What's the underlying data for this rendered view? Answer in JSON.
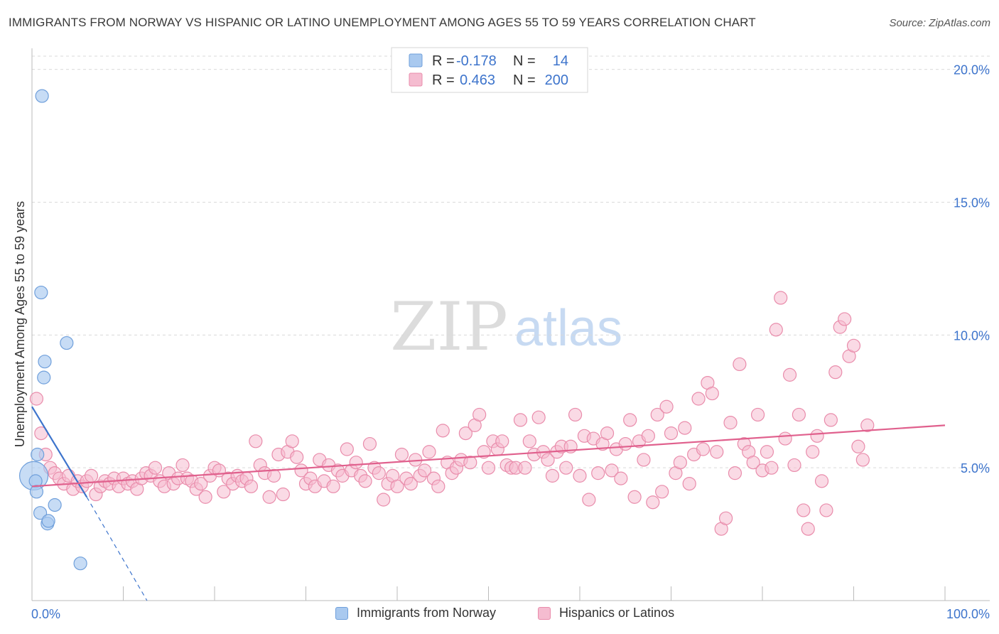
{
  "header": {
    "title": "IMMIGRANTS FROM NORWAY VS HISPANIC OR LATINO UNEMPLOYMENT AMONG AGES 55 TO 59 YEARS CORRELATION CHART",
    "source": "Source: ZipAtlas.com"
  },
  "watermark": {
    "zip": "ZIP",
    "atlas": "atlas"
  },
  "colors": {
    "blue_fill": "#a9c9ef",
    "blue_stroke": "#6f9fdb",
    "blue_line": "#3d74cc",
    "pink_fill": "#f5bcd0",
    "pink_stroke": "#e98cab",
    "pink_line": "#e0608d",
    "value_text": "#3d74cc",
    "grid": "#d9d9d9"
  },
  "legend_top": {
    "rows": [
      {
        "r_label": "R =",
        "r_value": "-0.178",
        "n_label": "N =",
        "n_value": "14",
        "series": "blue"
      },
      {
        "r_label": "R =",
        "r_value": "0.463",
        "n_label": "N =",
        "n_value": "200",
        "series": "pink"
      }
    ]
  },
  "legend_bottom": {
    "items": [
      {
        "label": "Immigrants from Norway",
        "series": "blue"
      },
      {
        "label": "Hispanics or Latinos",
        "series": "pink"
      }
    ]
  },
  "chart_data": {
    "type": "scatter",
    "title": "IMMIGRANTS FROM NORWAY VS HISPANIC OR LATINO UNEMPLOYMENT AMONG AGES 55 TO 59 YEARS CORRELATION CHART",
    "xlabel": "",
    "ylabel": "Unemployment Among Ages 55 to 59 years",
    "xlim": [
      0,
      100
    ],
    "ylim": [
      0,
      20.5
    ],
    "x_tick_labels": [
      "0.0%",
      "100.0%"
    ],
    "y_ticks": [
      5,
      10,
      15,
      20
    ],
    "y_tick_labels": [
      "5.0%",
      "10.0%",
      "15.0%",
      "20.0%"
    ],
    "grid": true,
    "series": [
      {
        "name": "Immigrants from Norway",
        "color": "blue",
        "r": -0.178,
        "n": 14,
        "trend": {
          "x0": 0,
          "y0": 7.3,
          "x1": 6.0,
          "y1": 3.9,
          "dash_to_x": 12.6,
          "dash_to_y": 0
        },
        "points": [
          [
            0.2,
            4.7,
            "large"
          ],
          [
            0.4,
            4.5
          ],
          [
            0.5,
            4.1
          ],
          [
            0.6,
            5.5
          ],
          [
            0.9,
            3.3
          ],
          [
            1.0,
            11.6
          ],
          [
            1.1,
            19.0
          ],
          [
            1.3,
            8.4
          ],
          [
            1.4,
            9.0
          ],
          [
            1.7,
            2.9
          ],
          [
            1.8,
            3.0
          ],
          [
            2.5,
            3.6
          ],
          [
            3.8,
            9.7
          ],
          [
            5.3,
            1.4
          ]
        ]
      },
      {
        "name": "Hispanics or Latinos",
        "color": "pink",
        "r": 0.463,
        "n": 200,
        "trend": {
          "x0": 0,
          "y0": 4.3,
          "x1": 100,
          "y1": 6.6
        },
        "points": [
          [
            0.5,
            7.6
          ],
          [
            1.0,
            6.3
          ],
          [
            1.5,
            5.5
          ],
          [
            2.0,
            5.0
          ],
          [
            2.5,
            4.8
          ],
          [
            3.0,
            4.6
          ],
          [
            3.5,
            4.4
          ],
          [
            4.0,
            4.7
          ],
          [
            4.5,
            4.2
          ],
          [
            5.0,
            4.5
          ],
          [
            5.5,
            4.3
          ],
          [
            6.0,
            4.5
          ],
          [
            6.5,
            4.7
          ],
          [
            7.0,
            4.0
          ],
          [
            7.5,
            4.3
          ],
          [
            8.0,
            4.5
          ],
          [
            8.5,
            4.4
          ],
          [
            9.0,
            4.6
          ],
          [
            9.5,
            4.3
          ],
          [
            10.0,
            4.6
          ],
          [
            10.5,
            4.4
          ],
          [
            11.0,
            4.5
          ],
          [
            11.5,
            4.2
          ],
          [
            12.0,
            4.6
          ],
          [
            12.5,
            4.8
          ],
          [
            13.0,
            4.7
          ],
          [
            13.5,
            5.0
          ],
          [
            14.0,
            4.5
          ],
          [
            14.5,
            4.3
          ],
          [
            15.0,
            4.8
          ],
          [
            15.5,
            4.4
          ],
          [
            16.0,
            4.6
          ],
          [
            16.5,
            5.1
          ],
          [
            17.0,
            4.6
          ],
          [
            17.5,
            4.5
          ],
          [
            18.0,
            4.2
          ],
          [
            18.5,
            4.4
          ],
          [
            19.0,
            3.9
          ],
          [
            19.5,
            4.7
          ],
          [
            20.0,
            5.0
          ],
          [
            20.5,
            4.9
          ],
          [
            21.0,
            4.1
          ],
          [
            21.5,
            4.6
          ],
          [
            22.0,
            4.4
          ],
          [
            22.5,
            4.7
          ],
          [
            23.0,
            4.5
          ],
          [
            23.5,
            4.6
          ],
          [
            24.0,
            4.3
          ],
          [
            24.5,
            6.0
          ],
          [
            25.0,
            5.1
          ],
          [
            25.5,
            4.8
          ],
          [
            26.0,
            3.9
          ],
          [
            26.5,
            4.7
          ],
          [
            27.0,
            5.5
          ],
          [
            27.5,
            4.0
          ],
          [
            28.0,
            5.6
          ],
          [
            28.5,
            6.0
          ],
          [
            29.0,
            5.4
          ],
          [
            29.5,
            4.9
          ],
          [
            30.0,
            4.4
          ],
          [
            30.5,
            4.6
          ],
          [
            31.0,
            4.3
          ],
          [
            31.5,
            5.3
          ],
          [
            32.0,
            4.5
          ],
          [
            32.5,
            5.1
          ],
          [
            33.0,
            4.3
          ],
          [
            33.5,
            4.9
          ],
          [
            34.0,
            4.7
          ],
          [
            34.5,
            5.7
          ],
          [
            35.0,
            4.9
          ],
          [
            35.5,
            5.2
          ],
          [
            36.0,
            4.7
          ],
          [
            36.5,
            4.5
          ],
          [
            37.0,
            5.9
          ],
          [
            37.5,
            5.0
          ],
          [
            38.0,
            4.8
          ],
          [
            38.5,
            3.8
          ],
          [
            39.0,
            4.4
          ],
          [
            39.5,
            4.7
          ],
          [
            40.0,
            4.3
          ],
          [
            40.5,
            5.5
          ],
          [
            41.0,
            4.6
          ],
          [
            41.5,
            4.4
          ],
          [
            42.0,
            5.3
          ],
          [
            42.5,
            4.7
          ],
          [
            43.0,
            4.9
          ],
          [
            43.5,
            5.6
          ],
          [
            44.0,
            4.6
          ],
          [
            44.5,
            4.3
          ],
          [
            45.0,
            6.4
          ],
          [
            45.5,
            5.2
          ],
          [
            46.0,
            4.8
          ],
          [
            46.5,
            5.0
          ],
          [
            47.0,
            5.3
          ],
          [
            47.5,
            6.3
          ],
          [
            48.0,
            5.2
          ],
          [
            48.5,
            6.6
          ],
          [
            49.0,
            7.0
          ],
          [
            49.5,
            5.6
          ],
          [
            50.0,
            5.0
          ],
          [
            50.5,
            6.0
          ],
          [
            51.0,
            5.7
          ],
          [
            51.5,
            6.0
          ],
          [
            52.0,
            5.1
          ],
          [
            52.5,
            5.0
          ],
          [
            53.0,
            5.0
          ],
          [
            53.5,
            6.8
          ],
          [
            54.0,
            5.0
          ],
          [
            54.5,
            6.0
          ],
          [
            55.0,
            5.5
          ],
          [
            55.5,
            6.9
          ],
          [
            56.0,
            5.6
          ],
          [
            56.5,
            5.3
          ],
          [
            57.0,
            4.7
          ],
          [
            57.5,
            5.6
          ],
          [
            58.0,
            5.8
          ],
          [
            58.5,
            5.0
          ],
          [
            59.0,
            5.8
          ],
          [
            59.5,
            7.0
          ],
          [
            60.0,
            4.7
          ],
          [
            60.5,
            6.2
          ],
          [
            61.0,
            3.8
          ],
          [
            61.5,
            6.1
          ],
          [
            62.0,
            4.8
          ],
          [
            62.5,
            5.9
          ],
          [
            63.0,
            6.3
          ],
          [
            63.5,
            4.9
          ],
          [
            64.0,
            5.7
          ],
          [
            64.5,
            4.6
          ],
          [
            65.0,
            5.9
          ],
          [
            65.5,
            6.8
          ],
          [
            66.0,
            3.9
          ],
          [
            66.5,
            6.0
          ],
          [
            67.0,
            5.3
          ],
          [
            67.5,
            6.2
          ],
          [
            68.0,
            3.7
          ],
          [
            68.5,
            7.0
          ],
          [
            69.0,
            4.1
          ],
          [
            69.5,
            7.3
          ],
          [
            70.0,
            6.3
          ],
          [
            70.5,
            4.8
          ],
          [
            71.0,
            5.2
          ],
          [
            71.5,
            6.5
          ],
          [
            72.0,
            4.4
          ],
          [
            72.5,
            5.5
          ],
          [
            73.0,
            7.6
          ],
          [
            73.5,
            5.7
          ],
          [
            74.0,
            8.2
          ],
          [
            74.5,
            7.8
          ],
          [
            75.0,
            5.6
          ],
          [
            75.5,
            2.7
          ],
          [
            76.0,
            3.1
          ],
          [
            76.5,
            6.7
          ],
          [
            77.0,
            4.8
          ],
          [
            77.5,
            8.9
          ],
          [
            78.0,
            5.9
          ],
          [
            78.5,
            5.6
          ],
          [
            79.0,
            5.2
          ],
          [
            79.5,
            7.0
          ],
          [
            80.0,
            4.9
          ],
          [
            80.5,
            5.6
          ],
          [
            81.0,
            5.0
          ],
          [
            81.5,
            10.2
          ],
          [
            82.0,
            11.4
          ],
          [
            82.5,
            6.1
          ],
          [
            83.0,
            8.5
          ],
          [
            83.5,
            5.1
          ],
          [
            84.0,
            7.0
          ],
          [
            84.5,
            3.4
          ],
          [
            85.0,
            2.7
          ],
          [
            85.5,
            5.6
          ],
          [
            86.0,
            6.2
          ],
          [
            86.5,
            4.5
          ],
          [
            87.0,
            3.4
          ],
          [
            87.5,
            6.8
          ],
          [
            88.0,
            8.6
          ],
          [
            88.5,
            10.3
          ],
          [
            89.0,
            10.6
          ],
          [
            89.5,
            9.2
          ],
          [
            90.0,
            9.6
          ],
          [
            90.5,
            5.8
          ],
          [
            91.0,
            5.3
          ],
          [
            91.5,
            6.6
          ]
        ]
      }
    ]
  }
}
